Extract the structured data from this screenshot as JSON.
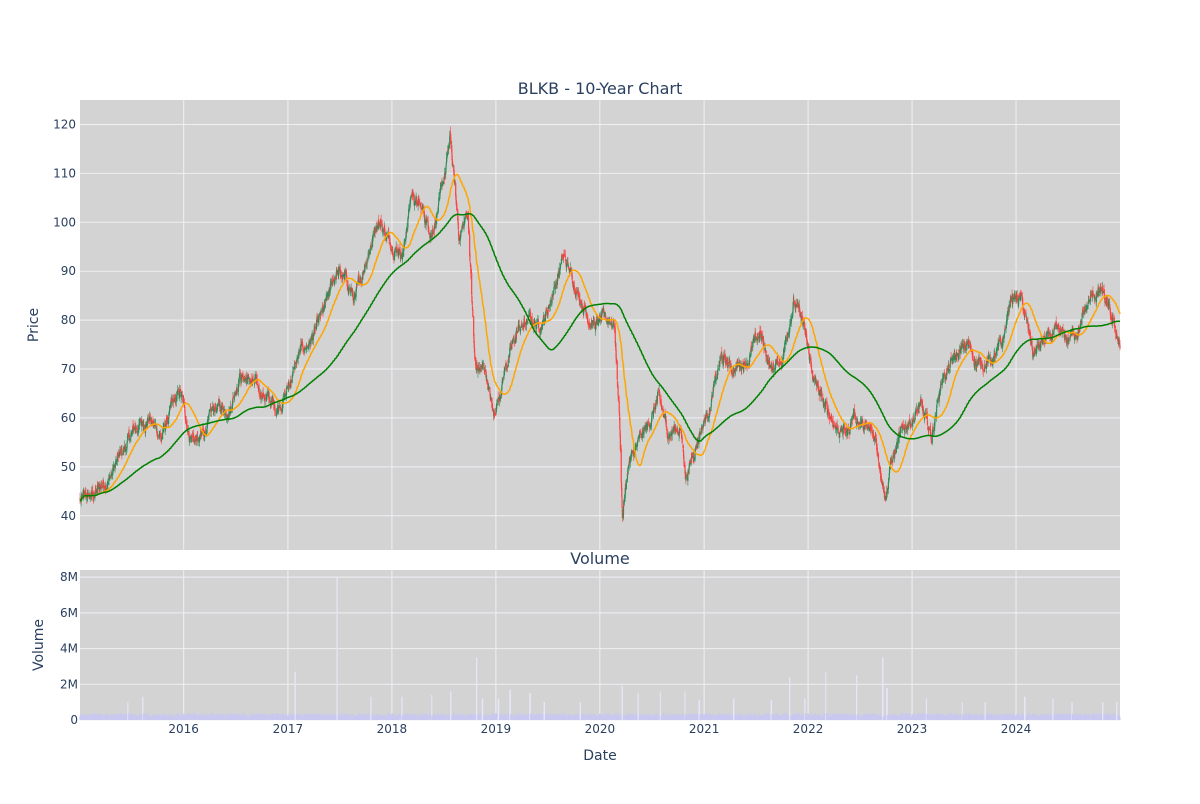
{
  "chart_data": [
    {
      "type": "candlestick",
      "title": "BLKB - 10-Year Chart",
      "xlabel": "",
      "ylabel": "Price",
      "xlim": [
        "2015-01-02",
        "2024-12-31"
      ],
      "ylim": [
        33,
        125
      ],
      "y_ticks": [
        40,
        50,
        60,
        70,
        80,
        90,
        100,
        110,
        120
      ],
      "x_ticks": [
        "2016",
        "2017",
        "2018",
        "2019",
        "2020",
        "2021",
        "2022",
        "2023",
        "2024"
      ],
      "grid": true,
      "colors": {
        "background": "#d3d3d3",
        "grid": "#eef0f4",
        "up": "#2e8b57",
        "down": "#ff4040",
        "ma_short": "#ffa500",
        "ma_long": "#008000",
        "text": "#2a3f5f"
      },
      "close_anchors": [
        [
          "2015-01-02",
          43
        ],
        [
          "2015-02-15",
          44
        ],
        [
          "2015-04-15",
          48
        ],
        [
          "2015-06-01",
          53
        ],
        [
          "2015-07-15",
          58
        ],
        [
          "2015-09-01",
          60
        ],
        [
          "2015-10-15",
          56
        ],
        [
          "2015-11-20",
          62
        ],
        [
          "2015-12-20",
          65
        ],
        [
          "2016-01-20",
          57
        ],
        [
          "2016-02-25",
          55
        ],
        [
          "2016-04-20",
          62
        ],
        [
          "2016-06-10",
          62
        ],
        [
          "2016-07-15",
          69
        ],
        [
          "2016-09-01",
          67
        ],
        [
          "2016-10-20",
          64
        ],
        [
          "2016-11-20",
          62
        ],
        [
          "2016-12-25",
          65
        ],
        [
          "2017-02-10",
          73
        ],
        [
          "2017-03-25",
          76
        ],
        [
          "2017-05-10",
          82
        ],
        [
          "2017-06-20",
          90
        ],
        [
          "2017-07-25",
          88
        ],
        [
          "2017-08-25",
          84
        ],
        [
          "2017-10-05",
          93
        ],
        [
          "2017-11-15",
          101
        ],
        [
          "2017-12-25",
          96
        ],
        [
          "2018-02-10",
          94
        ],
        [
          "2018-03-10",
          106
        ],
        [
          "2018-04-20",
          102
        ],
        [
          "2018-05-20",
          98
        ],
        [
          "2018-06-25",
          106
        ],
        [
          "2018-07-25",
          117
        ],
        [
          "2018-08-25",
          97
        ],
        [
          "2018-09-25",
          102
        ],
        [
          "2018-10-20",
          70
        ],
        [
          "2018-11-25",
          70
        ],
        [
          "2018-12-24",
          60
        ],
        [
          "2019-02-01",
          70
        ],
        [
          "2019-03-20",
          78
        ],
        [
          "2019-05-01",
          80
        ],
        [
          "2019-06-01",
          79
        ],
        [
          "2019-07-01",
          82
        ],
        [
          "2019-08-01",
          88
        ],
        [
          "2019-08-25",
          93
        ],
        [
          "2019-10-15",
          86
        ],
        [
          "2019-11-20",
          81
        ],
        [
          "2019-12-15",
          79
        ],
        [
          "2020-01-10",
          80
        ],
        [
          "2020-02-20",
          80
        ],
        [
          "2020-03-10",
          60
        ],
        [
          "2020-03-20",
          40
        ],
        [
          "2020-04-10",
          50
        ],
        [
          "2020-05-10",
          54
        ],
        [
          "2020-06-15",
          58
        ],
        [
          "2020-07-25",
          64
        ],
        [
          "2020-08-25",
          57
        ],
        [
          "2020-10-10",
          58
        ],
        [
          "2020-10-30",
          48
        ],
        [
          "2020-12-15",
          57
        ],
        [
          "2021-01-20",
          62
        ],
        [
          "2021-03-01",
          72
        ],
        [
          "2021-04-15",
          70
        ],
        [
          "2021-06-01",
          72
        ],
        [
          "2021-07-15",
          77
        ],
        [
          "2021-08-25",
          70
        ],
        [
          "2021-10-01",
          72
        ],
        [
          "2021-11-10",
          84
        ],
        [
          "2021-12-10",
          80
        ],
        [
          "2022-01-20",
          68
        ],
        [
          "2022-03-01",
          62
        ],
        [
          "2022-04-15",
          58
        ],
        [
          "2022-05-20",
          57
        ],
        [
          "2022-06-10",
          61
        ],
        [
          "2022-07-15",
          58
        ],
        [
          "2022-08-25",
          56
        ],
        [
          "2022-10-01",
          44
        ],
        [
          "2022-10-15",
          50
        ],
        [
          "2022-11-15",
          55
        ],
        [
          "2022-12-15",
          59
        ],
        [
          "2023-02-01",
          62
        ],
        [
          "2023-03-10",
          56
        ],
        [
          "2023-04-15",
          68
        ],
        [
          "2023-06-01",
          72
        ],
        [
          "2023-07-15",
          75
        ],
        [
          "2023-08-20",
          71
        ],
        [
          "2023-10-15",
          72
        ],
        [
          "2023-11-15",
          75
        ],
        [
          "2023-12-15",
          85
        ],
        [
          "2024-01-20",
          84
        ],
        [
          "2024-03-01",
          73
        ],
        [
          "2024-04-15",
          76
        ],
        [
          "2024-05-25",
          77
        ],
        [
          "2024-07-01",
          76
        ],
        [
          "2024-08-15",
          79
        ],
        [
          "2024-09-15",
          84
        ],
        [
          "2024-10-25",
          86
        ],
        [
          "2024-12-01",
          80
        ],
        [
          "2024-12-31",
          75
        ]
      ]
    },
    {
      "type": "bar",
      "title": "Volume",
      "xlabel": "Date",
      "ylabel": "Volume",
      "ylim": [
        0,
        8400000
      ],
      "y_ticks": [
        0,
        2000000,
        4000000,
        6000000,
        8000000
      ],
      "y_tick_labels": [
        "0",
        "2M",
        "4M",
        "6M",
        "8M"
      ],
      "x_ticks": [
        "2016",
        "2017",
        "2018",
        "2019",
        "2020",
        "2021",
        "2022",
        "2023",
        "2024"
      ],
      "grid": true,
      "colors": {
        "background": "#d3d3d3",
        "bar": "#c8c8f0",
        "spike": "#e6e6fa"
      },
      "baseline_volume": 280000,
      "volume_spikes": [
        [
          "2015-06-20",
          1000000
        ],
        [
          "2015-08-10",
          1300000
        ],
        [
          "2017-01-27",
          2700000
        ],
        [
          "2017-06-23",
          8000000
        ],
        [
          "2017-10-20",
          1300000
        ],
        [
          "2018-02-05",
          1300000
        ],
        [
          "2018-05-20",
          1400000
        ],
        [
          "2018-07-27",
          1600000
        ],
        [
          "2018-10-26",
          3500000
        ],
        [
          "2018-11-15",
          1200000
        ],
        [
          "2019-01-10",
          1200000
        ],
        [
          "2019-02-20",
          1700000
        ],
        [
          "2019-05-01",
          1500000
        ],
        [
          "2019-06-20",
          1000000
        ],
        [
          "2019-10-25",
          1000000
        ],
        [
          "2020-03-20",
          1900000
        ],
        [
          "2020-05-15",
          1500000
        ],
        [
          "2020-08-01",
          1600000
        ],
        [
          "2020-10-25",
          1600000
        ],
        [
          "2020-12-15",
          1100000
        ],
        [
          "2021-04-15",
          1200000
        ],
        [
          "2021-08-25",
          1100000
        ],
        [
          "2021-10-29",
          2400000
        ],
        [
          "2021-12-20",
          1200000
        ],
        [
          "2022-03-05",
          2700000
        ],
        [
          "2022-06-20",
          2500000
        ],
        [
          "2022-09-20",
          3500000
        ],
        [
          "2022-10-05",
          1800000
        ],
        [
          "2023-02-20",
          1200000
        ],
        [
          "2023-06-25",
          1000000
        ],
        [
          "2023-09-15",
          1000000
        ],
        [
          "2024-02-01",
          1300000
        ],
        [
          "2024-05-10",
          1200000
        ],
        [
          "2024-07-15",
          1000000
        ],
        [
          "2024-11-01",
          1000000
        ],
        [
          "2024-12-20",
          1000000
        ]
      ]
    }
  ]
}
